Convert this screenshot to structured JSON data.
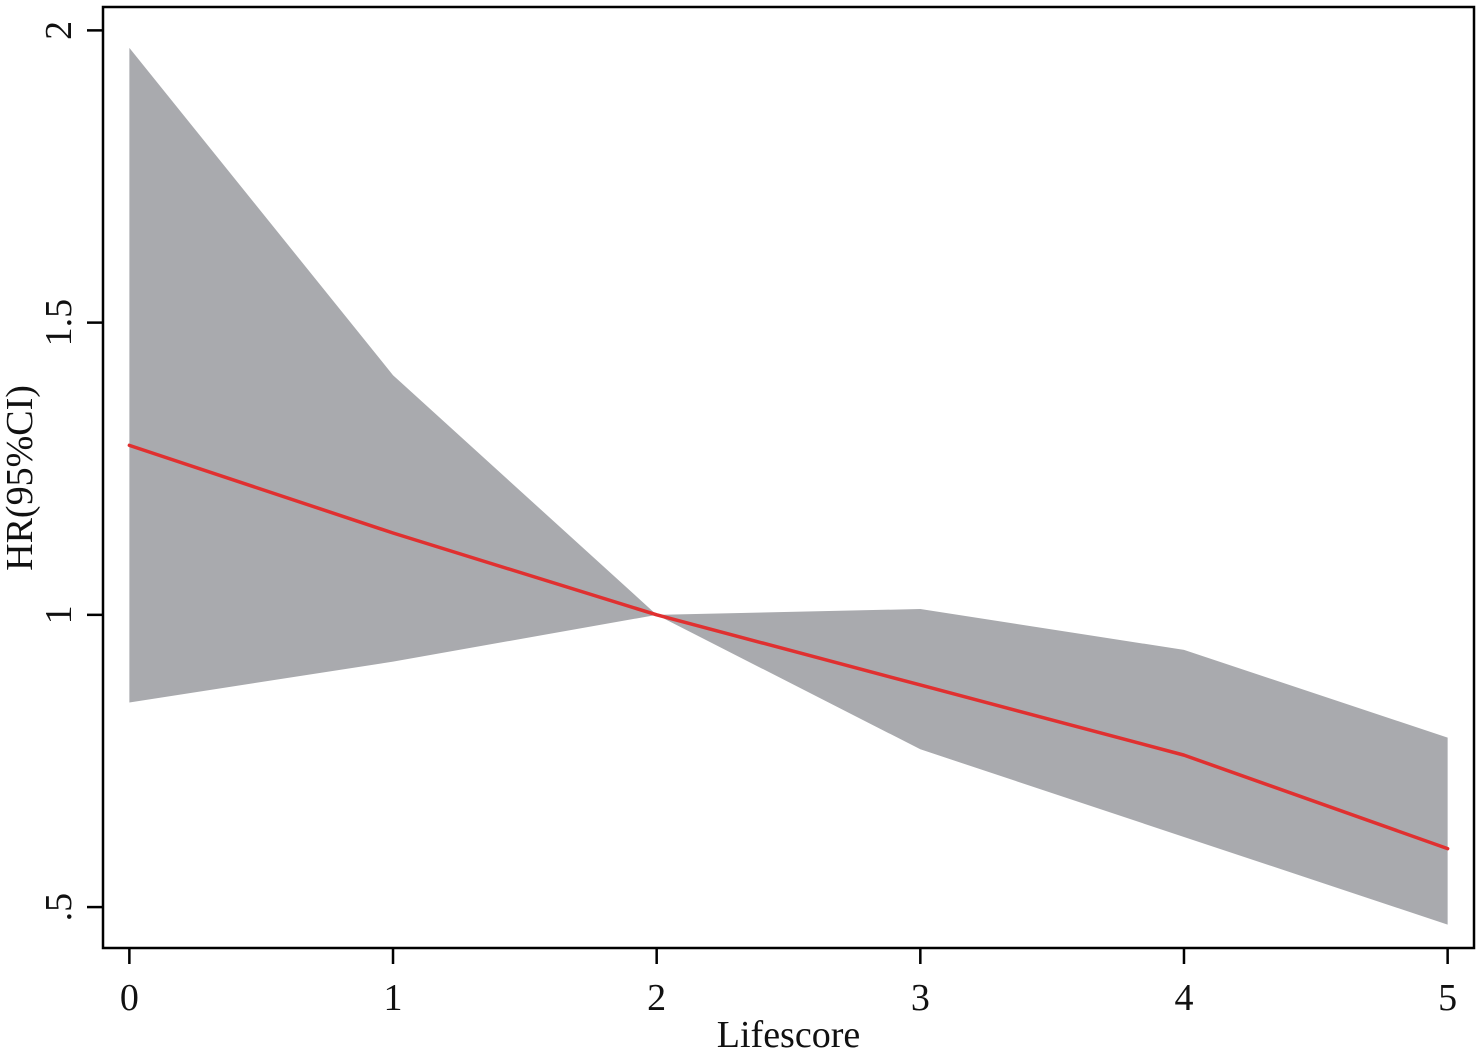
{
  "chart_data": {
    "type": "area",
    "title": "",
    "xlabel": "Lifescore",
    "ylabel": "HR(95%CI)",
    "x": [
      0,
      1,
      2,
      3,
      4,
      5
    ],
    "xticks": [
      0,
      1,
      2,
      3,
      4,
      5
    ],
    "xtick_labels": [
      "0",
      "1",
      "2",
      "3",
      "4",
      "5"
    ],
    "yticks": [
      0.5,
      1,
      1.5,
      2
    ],
    "ytick_labels": [
      ".5",
      "1",
      "1.5",
      "2"
    ],
    "xlim": [
      -0.1,
      5.1
    ],
    "ylim": [
      0.43,
      2.04
    ],
    "grid": false,
    "series": [
      {
        "role": "ci-upper",
        "values": [
          1.97,
          1.41,
          1.0,
          1.01,
          0.94,
          0.79
        ]
      },
      {
        "role": "ci-lower",
        "values": [
          0.85,
          0.92,
          1.0,
          0.77,
          0.62,
          0.47
        ]
      },
      {
        "role": "estimate",
        "values": [
          1.29,
          1.14,
          1.0,
          0.88,
          0.76,
          0.6
        ]
      }
    ],
    "colors": {
      "band": "#a9aaae",
      "line": "#e03030",
      "axis": "#000000"
    }
  }
}
